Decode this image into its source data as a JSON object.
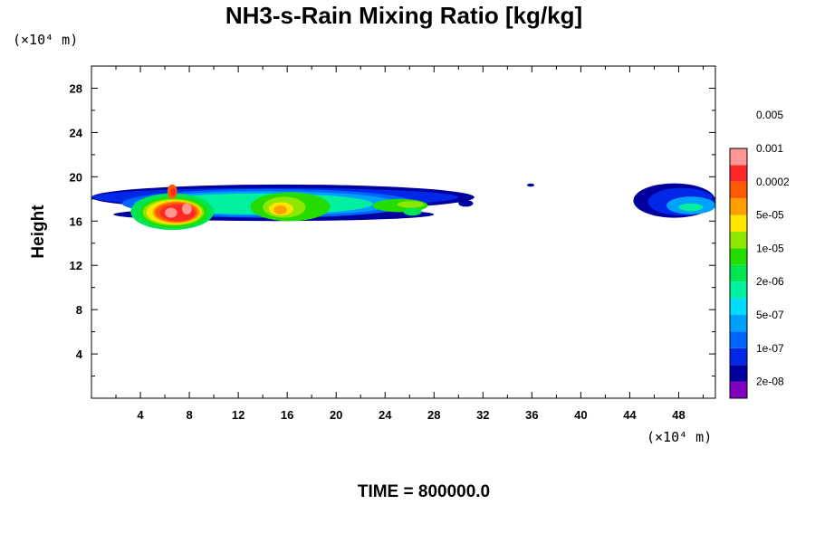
{
  "chart_data": {
    "type": "heatmap",
    "title": "NH3-s-Rain Mixing Ratio [kg/kg]",
    "xlabel": "",
    "ylabel": "Height",
    "x_units": "(×10⁴ m)",
    "y_units": "(×10⁴ m)",
    "xlim": [
      0,
      51
    ],
    "ylim": [
      0,
      30
    ],
    "x_ticks": [
      4,
      8,
      12,
      16,
      20,
      24,
      28,
      32,
      36,
      40,
      44,
      48
    ],
    "y_ticks": [
      4,
      8,
      12,
      16,
      20,
      24,
      28
    ],
    "x_ticks_minor": [
      2,
      6,
      10,
      14,
      18,
      22,
      26,
      30,
      34,
      38,
      42,
      46,
      50
    ],
    "y_ticks_minor": [
      2,
      6,
      10,
      14,
      18,
      22,
      26
    ],
    "footer": "TIME = 800000.0",
    "colorbar": {
      "colors": [
        "#7f00bf",
        "#00009f",
        "#0028e6",
        "#0066ff",
        "#00a0ff",
        "#00dcff",
        "#00f0a0",
        "#00e650",
        "#24dc00",
        "#8fe600",
        "#ffe600",
        "#ffa000",
        "#ff5a00",
        "#ff2828",
        "#ff9696"
      ],
      "labels": [
        "2e-08",
        "1e-07",
        "5e-07",
        "2e-06",
        "1e-05",
        "5e-05",
        "0.0002",
        "0.001",
        "0.005"
      ],
      "label_slots": [
        1,
        3,
        5,
        7,
        9,
        11,
        13,
        15,
        17
      ]
    },
    "regions": [
      {
        "level": 1,
        "x0": 0.0,
        "x1": 31.3,
        "y0": 17.0,
        "y1": 19.3
      },
      {
        "level": 1,
        "x0": 1.8,
        "x1": 28.0,
        "y0": 16.0,
        "y1": 17.2
      },
      {
        "level": 2,
        "x0": 0.0,
        "x1": 30.0,
        "y0": 17.3,
        "y1": 19.0
      },
      {
        "level": 3,
        "x0": 2.5,
        "x1": 26.5,
        "y0": 16.3,
        "y1": 18.9
      },
      {
        "level": 4,
        "x0": 3.5,
        "x1": 25.0,
        "y0": 16.5,
        "y1": 18.7
      },
      {
        "level": 6,
        "x0": 4.5,
        "x1": 23.0,
        "y0": 16.6,
        "y1": 18.5
      },
      {
        "level": 7,
        "x0": 3.2,
        "x1": 10.0,
        "y0": 15.2,
        "y1": 18.5
      },
      {
        "level": 8,
        "x0": 4.0,
        "x1": 9.5,
        "y0": 15.4,
        "y1": 18.2
      },
      {
        "level": 9,
        "x0": 4.2,
        "x1": 9.2,
        "y0": 15.6,
        "y1": 18.0
      },
      {
        "level": 10,
        "x0": 4.5,
        "x1": 9.0,
        "y0": 15.7,
        "y1": 17.9
      },
      {
        "level": 11,
        "x0": 5.0,
        "x1": 8.9,
        "y0": 15.8,
        "y1": 17.8
      },
      {
        "level": 12,
        "x0": 5.2,
        "x1": 8.7,
        "y0": 15.9,
        "y1": 17.7
      },
      {
        "level": 13,
        "x0": 5.6,
        "x1": 8.5,
        "y0": 16.0,
        "y1": 17.5
      },
      {
        "level": 12,
        "x0": 6.2,
        "x1": 7.0,
        "y0": 18.0,
        "y1": 19.3
      },
      {
        "level": 13,
        "x0": 6.5,
        "x1": 6.9,
        "y0": 18.3,
        "y1": 19.0
      },
      {
        "level": 14,
        "x0": 6.0,
        "x1": 7.0,
        "y0": 16.3,
        "y1": 17.2
      },
      {
        "level": 14,
        "x0": 7.4,
        "x1": 8.2,
        "y0": 16.6,
        "y1": 17.6
      },
      {
        "level": 8,
        "x0": 13.0,
        "x1": 19.5,
        "y0": 16.0,
        "y1": 18.6
      },
      {
        "level": 9,
        "x0": 14.0,
        "x1": 17.5,
        "y0": 16.3,
        "y1": 18.2
      },
      {
        "level": 10,
        "x0": 14.5,
        "x1": 16.5,
        "y0": 16.5,
        "y1": 17.7
      },
      {
        "level": 11,
        "x0": 14.9,
        "x1": 16.0,
        "y0": 16.6,
        "y1": 17.4
      },
      {
        "level": 8,
        "x0": 23.0,
        "x1": 27.5,
        "y0": 16.8,
        "y1": 18.0
      },
      {
        "level": 9,
        "x0": 25.0,
        "x1": 27.2,
        "y0": 17.2,
        "y1": 17.8
      },
      {
        "level": 7,
        "x0": 25.5,
        "x1": 27.0,
        "y0": 16.5,
        "y1": 17.2
      },
      {
        "level": 1,
        "x0": 30.0,
        "x1": 31.2,
        "y0": 17.3,
        "y1": 17.9
      },
      {
        "level": 1,
        "x0": 35.6,
        "x1": 36.2,
        "y0": 19.1,
        "y1": 19.4
      },
      {
        "level": 1,
        "x0": 44.3,
        "x1": 51.0,
        "y0": 16.3,
        "y1": 19.4
      },
      {
        "level": 2,
        "x0": 45.5,
        "x1": 51.0,
        "y0": 16.5,
        "y1": 19.0
      },
      {
        "level": 4,
        "x0": 47.0,
        "x1": 51.0,
        "y0": 16.6,
        "y1": 18.2
      },
      {
        "level": 6,
        "x0": 48.0,
        "x1": 50.0,
        "y0": 16.9,
        "y1": 17.6
      }
    ]
  }
}
